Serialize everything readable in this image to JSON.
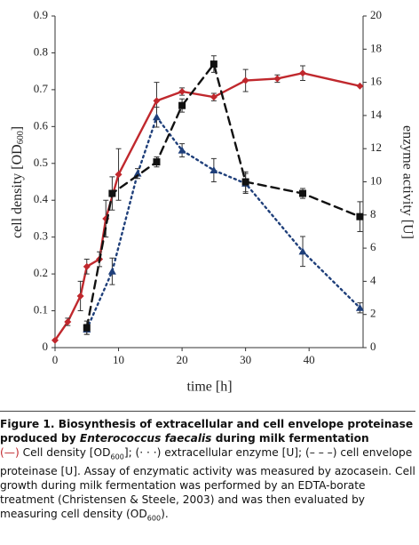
{
  "chart_data": {
    "type": "line",
    "xlabel": "time [h]",
    "ylabel": "cell density [OD",
    "ylabel_sub": "600",
    "ylabel_end": "]",
    "y2label": "enzyme activity [U]",
    "xlim": [
      0,
      48.5
    ],
    "xticks": [
      0,
      10,
      20,
      30,
      40
    ],
    "ylim": [
      0,
      0.9
    ],
    "yticks": [
      0,
      0.1,
      0.2,
      0.3,
      0.4,
      0.5,
      0.6,
      0.7,
      0.8,
      0.9
    ],
    "y2lim": [
      0,
      20
    ],
    "y2ticks": [
      0,
      2,
      4,
      6,
      8,
      10,
      12,
      14,
      16,
      18,
      20
    ],
    "series": [
      {
        "color": "#c0282d",
        "dash": "solid",
        "marker": "diamond",
        "x": [
          0,
          2,
          4,
          5,
          7,
          8,
          10,
          16,
          20,
          25,
          30,
          35,
          39,
          48
        ],
        "values": [
          0.02,
          0.07,
          0.14,
          0.22,
          0.24,
          0.35,
          0.47,
          0.67,
          0.695,
          0.68,
          0.725,
          0.73,
          0.745,
          0.71
        ],
        "errors": [
          0,
          0.01,
          0.04,
          0.02,
          0.02,
          0.05,
          0.07,
          0.05,
          0.01,
          0.01,
          0.03,
          0.01,
          0.02,
          0
        ]
      },
      {
        "color": "#1f3f7a",
        "dash": "dotted",
        "marker": "triangle",
        "axis": "y2",
        "x": [
          5,
          9,
          13,
          16,
          20,
          25,
          30,
          39,
          48
        ],
        "values": [
          1.1,
          4.6,
          10.5,
          13.9,
          11.9,
          10.7,
          9.9,
          5.8,
          2.4
        ],
        "errors": [
          0.3,
          0.8,
          0.3,
          0.6,
          0.4,
          0.7,
          0.6,
          0.9,
          0.3
        ]
      },
      {
        "color": "#111111",
        "dash": "dashed",
        "marker": "square",
        "axis": "y2",
        "x": [
          5,
          9,
          16,
          20,
          25,
          30,
          39,
          48
        ],
        "values": [
          1.2,
          9.3,
          11.2,
          14.6,
          17.1,
          10.0,
          9.3,
          7.9
        ],
        "errors": [
          0.4,
          1.0,
          0.3,
          0.4,
          0.5,
          0.6,
          0.3,
          0.9
        ]
      }
    ]
  },
  "caption": {
    "title": [
      "Figure 1. Biosynthesis of extracellular and cell envelope proteinase produced by ",
      "Enterococcus faecalis",
      " during milk fermentation"
    ],
    "body": [
      "(—)",
      " Cell density [OD",
      "600",
      "]; (· · ·) extracellular enzyme [U]; (– – –) cell envelope proteinase [U]. Assay of enzymatic activity was measured by azocasein. Cell growth during milk fermentation was performed by an EDTA-borate treatment (Christensen & Steele, 2003) and was then evaluated by measuring cell density (OD",
      "600",
      ")."
    ]
  }
}
